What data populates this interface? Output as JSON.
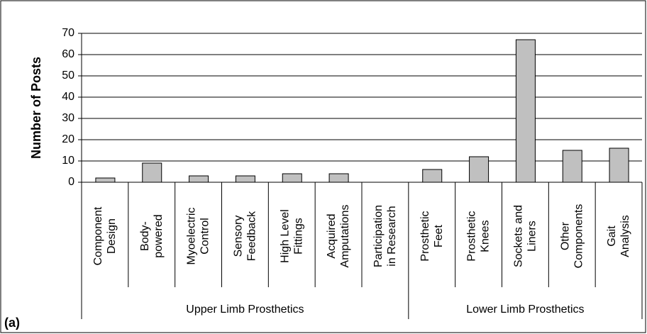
{
  "chart_data": {
    "type": "bar",
    "y_label": "Number of Posts",
    "annotation": "(a)",
    "groups": [
      {
        "name": "Upper Limb Prosthetics",
        "categories": [
          [
            "Component",
            "Design"
          ],
          [
            "Body-",
            "powered"
          ],
          [
            "Myoelectric",
            "Control"
          ],
          [
            "Sensory",
            "Feedback"
          ],
          [
            "High Level",
            "Fittings"
          ],
          [
            "Acquired",
            "Amputations"
          ],
          [
            "Participation",
            "in Research"
          ]
        ],
        "values": [
          2,
          9,
          3,
          3,
          4,
          4,
          0
        ]
      },
      {
        "name": "Lower Limb Prosthetics",
        "categories": [
          [
            "Prosthetic",
            "Feet"
          ],
          [
            "Prosthetic",
            "Knees"
          ],
          [
            "Sockets and",
            "Liners"
          ],
          [
            "Other",
            "Components"
          ],
          [
            "Gait",
            "Analysis"
          ]
        ],
        "values": [
          6,
          12,
          67,
          15,
          16
        ]
      }
    ],
    "color": "#c0c0c0",
    "ylim": [
      0,
      70
    ],
    "yticks": [
      0,
      10,
      20,
      30,
      40,
      50,
      60,
      70
    ],
    "grid": true
  }
}
